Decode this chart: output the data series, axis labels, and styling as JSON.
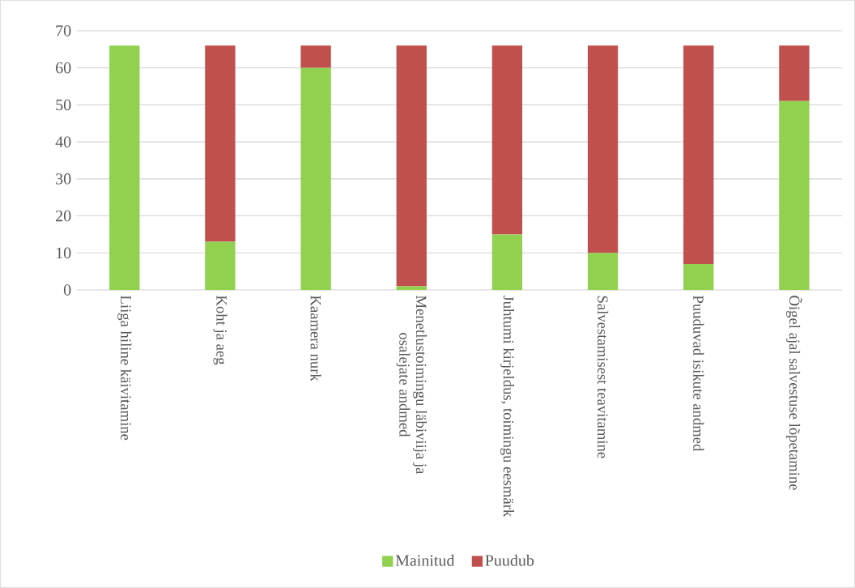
{
  "chart_data": {
    "type": "bar",
    "stacked": true,
    "categories": [
      "Liiga hiline käivitamine",
      "Koht ja aeg",
      "Kaamera nurk",
      "Menetlustoimingu läbiviija ja osalejate andmed",
      "Juhtumi kirjeldus, toimingu eesmärk",
      "Salvestamisest teavitamine",
      "Puuduvad isikute andmed",
      "Õigel ajal salvestuse lõpetamine"
    ],
    "series": [
      {
        "name": "Mainitud",
        "color": "#92d050",
        "values": [
          66,
          13,
          60,
          1,
          15,
          10,
          7,
          51
        ]
      },
      {
        "name": "Puudub",
        "color": "#c0504d",
        "values": [
          0,
          53,
          6,
          65,
          51,
          56,
          59,
          15
        ]
      }
    ],
    "ylim": [
      0,
      70
    ],
    "yticks": [
      0,
      10,
      20,
      30,
      40,
      50,
      60,
      70
    ],
    "grid": "y",
    "legend": "bottom"
  }
}
